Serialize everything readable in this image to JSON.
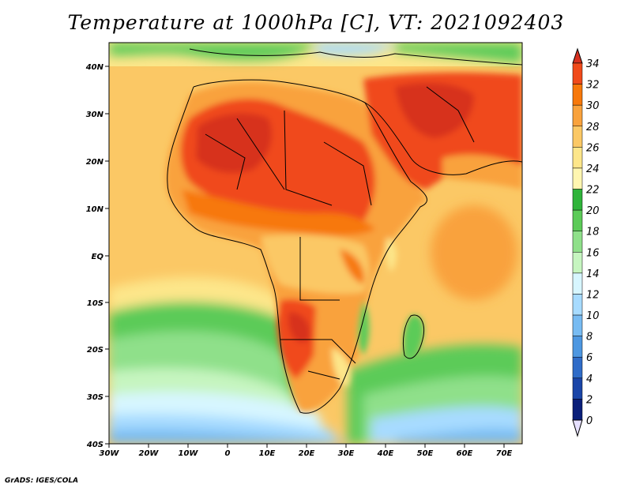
{
  "title": "Temperature at 1000hPa [C], VT: 2021092403",
  "credit": "GrADS: IGES/COLA",
  "lon_ticks": [
    "30W",
    "20W",
    "10W",
    "0",
    "10E",
    "20E",
    "30E",
    "40E",
    "50E",
    "60E",
    "70E"
  ],
  "lat_ticks": [
    "40N",
    "30N",
    "20N",
    "10N",
    "EQ",
    "10S",
    "20S",
    "30S",
    "40S"
  ],
  "colorbar": {
    "labels": [
      "34",
      "32",
      "30",
      "28",
      "26",
      "24",
      "22",
      "20",
      "18",
      "16",
      "14",
      "12",
      "10",
      "8",
      "6",
      "4",
      "2",
      "0"
    ],
    "colors": [
      "#d7301f",
      "#f04a1a",
      "#f7780a",
      "#f9a23c",
      "#fbc865",
      "#fde68a",
      "#fff6b0",
      "#2fb43a",
      "#5ccb58",
      "#8fe08a",
      "#c6f5c0",
      "#d7f6ff",
      "#a7dbff",
      "#77bbf2",
      "#4d97e1",
      "#2f6cc8",
      "#1a45a8",
      "#0a1f7a",
      "#080c5a"
    ]
  }
}
